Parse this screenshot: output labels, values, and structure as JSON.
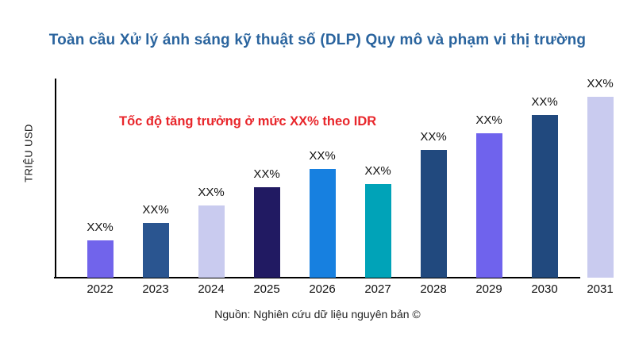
{
  "page": {
    "title": "Toàn cầu Xử lý ánh sáng kỹ thuật số (DLP) Quy mô và phạm vi thị trường",
    "growth_note": "Tốc độ tăng trưởng ở mức XX% theo IDR",
    "y_axis_label": "TRIỆU USD",
    "source": "Nguồn: Nghiên cứu dữ liệu nguyên bản ©"
  },
  "colors": {
    "title": "#2A649E",
    "growth_note": "#E8262B",
    "axis": "#000000",
    "bar_label": "#111111",
    "source_text": "#222222",
    "background": "#FFFFFF"
  },
  "chart_data": {
    "type": "bar",
    "title": "Toàn cầu Xử lý ánh sáng kỹ thuật số (DLP) Quy mô và phạm vi thị trường",
    "xlabel": "",
    "ylabel": "TRIỆU USD",
    "categories": [
      "2022",
      "2023",
      "2024",
      "2025",
      "2026",
      "2027",
      "2028",
      "2029",
      "2030",
      "2031"
    ],
    "values": [
      47,
      69,
      91,
      114,
      137,
      118,
      161,
      182,
      205,
      228
    ],
    "bar_labels": [
      "XX%",
      "XX%",
      "XX%",
      "XX%",
      "XX%",
      "XX%",
      "XX%",
      "XX%",
      "XX%",
      "XX%"
    ],
    "bar_colors": [
      "#7164EB",
      "#2A5590",
      "#C9CBEF",
      "#211A62",
      "#1780E0",
      "#00A3B8",
      "#21497E",
      "#6F63ED",
      "#21497E",
      "#C9CBEF"
    ],
    "annotation": "Tốc độ tăng trưởng ở mức XX% theo IDR",
    "legend_position": "none",
    "grid": false,
    "ylim": [
      0,
      252
    ],
    "note": "Trục y không có vạch số; giá trị cột là chiều cao tương đối ước lượng từ hình"
  }
}
